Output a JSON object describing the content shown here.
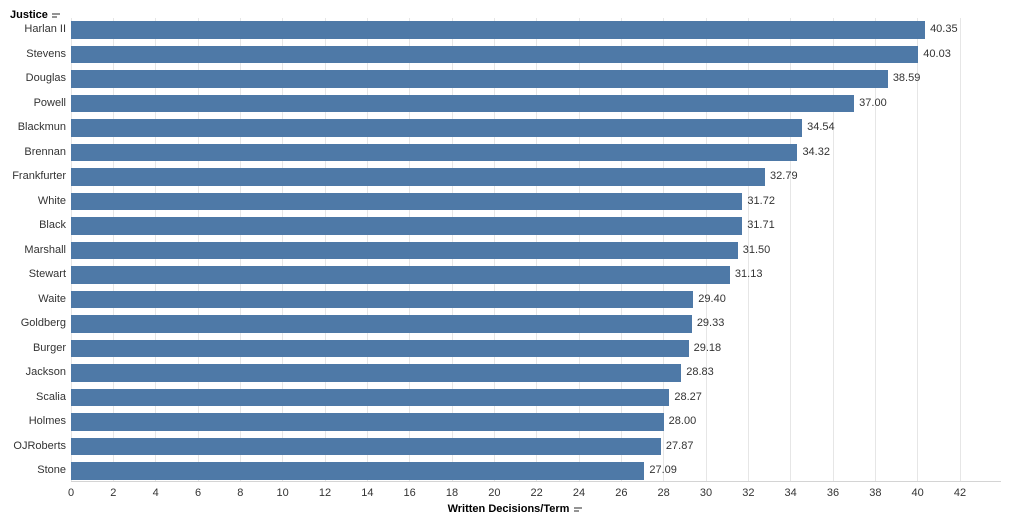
{
  "chart_data": {
    "type": "bar",
    "orientation": "horizontal",
    "row_header": "Justice",
    "xlabel": "Written Decisions/Term",
    "categories": [
      "Harlan II",
      "Stevens",
      "Douglas",
      "Powell",
      "Blackmun",
      "Brennan",
      "Frankfurter",
      "White",
      "Black",
      "Marshall",
      "Stewart",
      "Waite",
      "Goldberg",
      "Burger",
      "Jackson",
      "Scalia",
      "Holmes",
      "OJRoberts",
      "Stone"
    ],
    "values": [
      40.35,
      40.03,
      38.59,
      37.0,
      34.54,
      34.32,
      32.79,
      31.72,
      31.71,
      31.5,
      31.13,
      29.4,
      29.33,
      29.18,
      28.83,
      28.27,
      28.0,
      27.87,
      27.09
    ],
    "value_labels": [
      "40.35",
      "40.03",
      "38.59",
      "37.00",
      "34.54",
      "34.32",
      "32.79",
      "31.72",
      "31.71",
      "31.50",
      "31.13",
      "29.40",
      "29.33",
      "29.18",
      "28.83",
      "28.27",
      "28.00",
      "27.87",
      "27.09"
    ],
    "xlim": [
      0,
      42
    ],
    "xticks": [
      0,
      2,
      4,
      6,
      8,
      10,
      12,
      14,
      16,
      18,
      20,
      22,
      24,
      26,
      28,
      30,
      32,
      34,
      36,
      38,
      40,
      42
    ],
    "grid": "vertical-light",
    "legend": "none",
    "bar_color": "#4e79a7",
    "gridline_color": "#e6e6e6",
    "axis_line_color": "#d4d4d4",
    "text_color": "#333333"
  },
  "icons": {
    "sort_justice": "sort-descending-icon",
    "sort_measure": "sort-descending-icon"
  }
}
